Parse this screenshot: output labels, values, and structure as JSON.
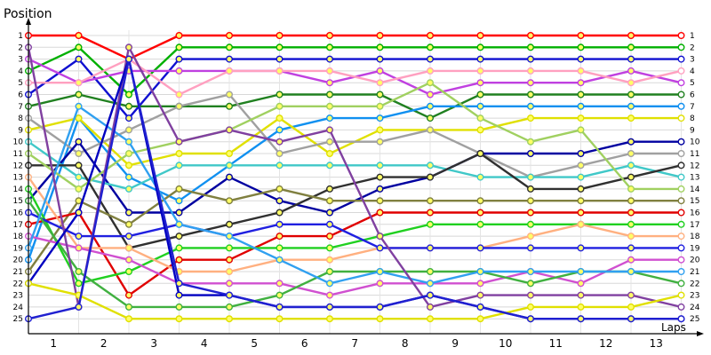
{
  "chart_data": {
    "type": "line",
    "ylabel": "Position",
    "xlabel": "Laps",
    "x_ticks": [
      "1",
      "2",
      "3",
      "4",
      "5",
      "6",
      "7",
      "8",
      "9",
      "10",
      "11",
      "12",
      "13"
    ],
    "y_ticks": [
      "1",
      "2",
      "3",
      "4",
      "5",
      "6",
      "7",
      "8",
      "9",
      "10",
      "11",
      "12",
      "13",
      "14",
      "15",
      "16",
      "17",
      "18",
      "19",
      "20",
      "21",
      "22",
      "23",
      "24",
      "25"
    ],
    "ylim": [
      1,
      25
    ],
    "y_inverted": true,
    "grid": true,
    "x": [
      0,
      1,
      2,
      3,
      4,
      5,
      6,
      7,
      8,
      9,
      10,
      11,
      12,
      13
    ],
    "series": [
      {
        "color": "#ff0000",
        "values": [
          1,
          1,
          3,
          1,
          1,
          1,
          1,
          1,
          1,
          1,
          1,
          1,
          1,
          1
        ]
      },
      {
        "color": "#00b000",
        "values": [
          4,
          2,
          6,
          2,
          2,
          2,
          2,
          2,
          2,
          2,
          2,
          2,
          2,
          2
        ]
      },
      {
        "color": "#1010d0",
        "values": [
          6,
          3,
          8,
          3,
          3,
          3,
          3,
          3,
          3,
          3,
          3,
          3,
          3,
          3
        ]
      },
      {
        "color": "#c040e0",
        "values": [
          3,
          5,
          4,
          4,
          4,
          4,
          5,
          4,
          6,
          5,
          5,
          5,
          4,
          5
        ]
      },
      {
        "color": "#ffa0c0",
        "values": [
          5,
          5,
          3,
          6,
          4,
          4,
          4,
          5,
          4,
          4,
          4,
          4,
          5,
          4
        ]
      },
      {
        "color": "#208020",
        "values": [
          7,
          6,
          7,
          7,
          7,
          6,
          6,
          6,
          8,
          6,
          6,
          6,
          6,
          6
        ]
      },
      {
        "color": "#1090f0",
        "values": [
          20,
          8,
          13,
          15,
          12,
          9,
          8,
          8,
          7,
          7,
          7,
          7,
          7,
          7
        ]
      },
      {
        "color": "#e0e000",
        "values": [
          9,
          8,
          12,
          11,
          11,
          8,
          11,
          9,
          9,
          9,
          8,
          8,
          8,
          8
        ]
      },
      {
        "color": "#a0a0a0",
        "values": [
          8,
          11,
          9,
          7,
          6,
          11,
          10,
          10,
          9,
          11,
          13,
          12,
          11,
          11
        ]
      },
      {
        "color": "#0000a0",
        "values": [
          15,
          10,
          16,
          16,
          13,
          15,
          16,
          14,
          13,
          11,
          11,
          11,
          10,
          10
        ]
      },
      {
        "color": "#40c8c8",
        "values": [
          10,
          13,
          14,
          12,
          12,
          12,
          12,
          12,
          12,
          13,
          13,
          13,
          12,
          13
        ]
      },
      {
        "color": "#303030",
        "values": [
          12,
          12,
          19,
          18,
          17,
          16,
          14,
          13,
          13,
          11,
          14,
          14,
          13,
          12
        ]
      },
      {
        "color": "#a0d060",
        "values": [
          11,
          14,
          11,
          10,
          9,
          7,
          7,
          7,
          5,
          8,
          10,
          9,
          14,
          14
        ]
      },
      {
        "color": "#808040",
        "values": [
          21,
          15,
          17,
          14,
          15,
          14,
          15,
          15,
          15,
          15,
          15,
          15,
          15,
          15
        ]
      },
      {
        "color": "#e00000",
        "values": [
          17,
          16,
          23,
          20,
          20,
          18,
          18,
          16,
          16,
          16,
          16,
          16,
          16,
          16
        ]
      },
      {
        "color": "#20d020",
        "values": [
          14,
          22,
          21,
          19,
          19,
          19,
          19,
          18,
          17,
          17,
          17,
          17,
          17,
          17
        ]
      },
      {
        "color": "#ffb080",
        "values": [
          13,
          19,
          19,
          21,
          21,
          20,
          20,
          19,
          19,
          19,
          18,
          17,
          18,
          18
        ]
      },
      {
        "color": "#2020e0",
        "values": [
          16,
          18,
          18,
          17,
          18,
          17,
          17,
          19,
          19,
          19,
          19,
          19,
          19,
          19
        ]
      },
      {
        "color": "#d050d0",
        "values": [
          18,
          19,
          20,
          22,
          22,
          22,
          23,
          22,
          22,
          22,
          21,
          22,
          20,
          20
        ]
      },
      {
        "color": "#40b040",
        "values": [
          15,
          21,
          24,
          24,
          24,
          23,
          21,
          21,
          21,
          21,
          22,
          21,
          21,
          22
        ]
      },
      {
        "color": "#30a0f0",
        "values": [
          19,
          7,
          10,
          17,
          18,
          20,
          22,
          21,
          22,
          21,
          21,
          21,
          21,
          21
        ]
      },
      {
        "color": "#8040a0",
        "values": [
          2,
          24,
          2,
          10,
          9,
          10,
          9,
          18,
          24,
          23,
          23,
          23,
          23,
          24
        ]
      },
      {
        "color": "#0000c0",
        "values": [
          22,
          16,
          3,
          23,
          23,
          24,
          24,
          24,
          23,
          24,
          25,
          25,
          25,
          25
        ]
      },
      {
        "color": "#e0e000",
        "values": [
          22,
          23,
          25,
          25,
          25,
          25,
          25,
          25,
          25,
          25,
          24,
          24,
          24,
          23
        ]
      },
      {
        "color": "#2020d0",
        "values": [
          25,
          24,
          3,
          22,
          23,
          24,
          24,
          24,
          23,
          24,
          25,
          25,
          25,
          25
        ]
      }
    ]
  }
}
